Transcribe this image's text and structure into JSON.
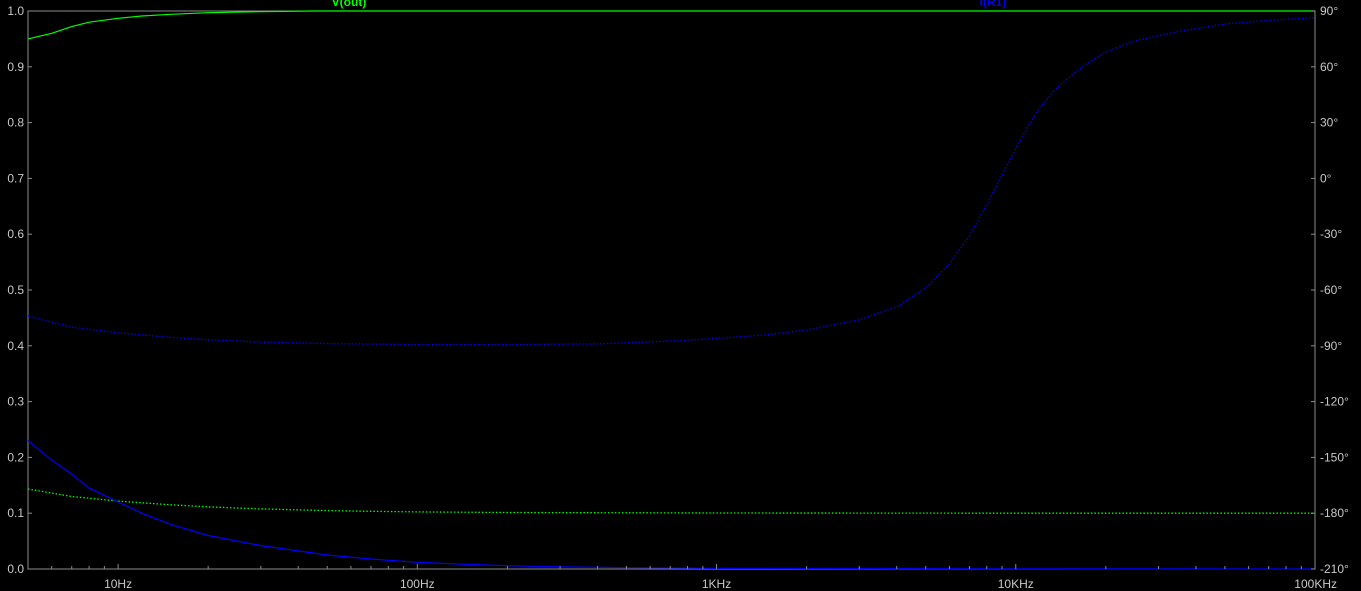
{
  "chart_data": {
    "type": "line",
    "title": "",
    "xlabel": "",
    "x_scale": "log",
    "xlim": [
      5,
      100000
    ],
    "left_ylim": [
      0.0,
      1.0
    ],
    "right_ylim": [
      -210,
      90
    ],
    "grid": false,
    "x_ticks": [
      {
        "value": 10,
        "label": "10Hz"
      },
      {
        "value": 100,
        "label": "100Hz"
      },
      {
        "value": 1000,
        "label": "1KHz"
      },
      {
        "value": 10000,
        "label": "10KHz"
      },
      {
        "value": 100000,
        "label": "100KHz"
      }
    ],
    "left_ticks": [
      {
        "value": 1.0,
        "label": "1.0"
      },
      {
        "value": 0.9,
        "label": "0.9"
      },
      {
        "value": 0.8,
        "label": "0.8"
      },
      {
        "value": 0.7,
        "label": "0.7"
      },
      {
        "value": 0.6,
        "label": "0.6"
      },
      {
        "value": 0.5,
        "label": "0.5"
      },
      {
        "value": 0.4,
        "label": "0.4"
      },
      {
        "value": 0.3,
        "label": "0.3"
      },
      {
        "value": 0.2,
        "label": "0.2"
      },
      {
        "value": 0.1,
        "label": "0.1"
      },
      {
        "value": 0.0,
        "label": "0.0"
      }
    ],
    "right_ticks": [
      {
        "value": 90,
        "label": "90°"
      },
      {
        "value": 60,
        "label": "60°"
      },
      {
        "value": 30,
        "label": "30°"
      },
      {
        "value": 0,
        "label": "0°"
      },
      {
        "value": -30,
        "label": "-30°"
      },
      {
        "value": -60,
        "label": "-60°"
      },
      {
        "value": -90,
        "label": "-90°"
      },
      {
        "value": -120,
        "label": "-120°"
      },
      {
        "value": -150,
        "label": "-150°"
      },
      {
        "value": -180,
        "label": "-180°"
      },
      {
        "value": -210,
        "label": "-210°"
      }
    ],
    "series": [
      {
        "name": "V(out)",
        "color": "#00ff00",
        "component": "magnitude",
        "axis": "left",
        "style": "solid",
        "points": [
          [
            5,
            0.95
          ],
          [
            6,
            0.96
          ],
          [
            7,
            0.972
          ],
          [
            8,
            0.98
          ],
          [
            10,
            0.987
          ],
          [
            12,
            0.991
          ],
          [
            15,
            0.994
          ],
          [
            20,
            0.997
          ],
          [
            30,
            0.999
          ],
          [
            45,
            1.0
          ],
          [
            100,
            1.0
          ],
          [
            1000,
            1.0
          ],
          [
            10000,
            1.0
          ],
          [
            100000,
            1.0
          ]
        ]
      },
      {
        "name": "V(out)",
        "color": "#00ff00",
        "component": "phase",
        "axis": "right",
        "style": "dotted",
        "points": [
          [
            5,
            -167
          ],
          [
            7,
            -171
          ],
          [
            10,
            -173.5
          ],
          [
            15,
            -175.5
          ],
          [
            20,
            -176.6
          ],
          [
            30,
            -177.7
          ],
          [
            50,
            -178.6
          ],
          [
            70,
            -179
          ],
          [
            100,
            -179.3
          ],
          [
            200,
            -179.6
          ],
          [
            1000,
            -179.9
          ],
          [
            10000,
            -180
          ],
          [
            100000,
            -180
          ]
        ]
      },
      {
        "name": "I(R1)",
        "color": "#0000ff",
        "component": "magnitude",
        "axis": "left",
        "style": "solid",
        "points": [
          [
            5,
            0.23
          ],
          [
            6,
            0.195
          ],
          [
            7,
            0.17
          ],
          [
            8,
            0.145
          ],
          [
            10,
            0.12
          ],
          [
            12,
            0.1
          ],
          [
            15,
            0.08
          ],
          [
            20,
            0.06
          ],
          [
            30,
            0.042
          ],
          [
            50,
            0.025
          ],
          [
            70,
            0.018
          ],
          [
            100,
            0.012
          ],
          [
            150,
            0.008
          ],
          [
            200,
            0.006
          ],
          [
            300,
            0.004
          ],
          [
            500,
            0.0025
          ],
          [
            1000,
            0.001
          ],
          [
            10000,
            0.0003
          ],
          [
            100000,
            0.0
          ]
        ]
      },
      {
        "name": "I(R1)",
        "color": "#0000ff",
        "component": "phase",
        "axis": "right",
        "style": "dotted",
        "points": [
          [
            5,
            -74
          ],
          [
            7,
            -80
          ],
          [
            10,
            -83
          ],
          [
            15,
            -85.5
          ],
          [
            20,
            -86.8
          ],
          [
            30,
            -88
          ],
          [
            50,
            -88.8
          ],
          [
            100,
            -89.3
          ],
          [
            200,
            -89.3
          ],
          [
            400,
            -89
          ],
          [
            700,
            -87.5
          ],
          [
            1000,
            -86
          ],
          [
            1500,
            -84
          ],
          [
            2000,
            -81.5
          ],
          [
            3000,
            -76
          ],
          [
            4000,
            -69
          ],
          [
            5000,
            -59
          ],
          [
            6000,
            -46
          ],
          [
            7000,
            -31
          ],
          [
            8000,
            -14
          ],
          [
            9000,
            2
          ],
          [
            10000,
            16
          ],
          [
            11000,
            28
          ],
          [
            12000,
            38
          ],
          [
            14000,
            50
          ],
          [
            17000,
            61
          ],
          [
            20000,
            68
          ],
          [
            25000,
            74
          ],
          [
            35000,
            79
          ],
          [
            50000,
            83
          ],
          [
            70000,
            85
          ],
          [
            100000,
            86.5
          ]
        ]
      }
    ]
  }
}
